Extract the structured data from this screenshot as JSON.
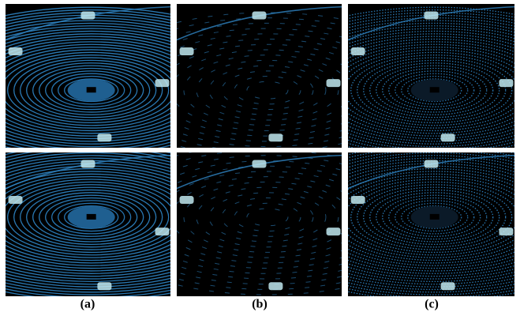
{
  "labels": [
    "(a)",
    "(b)",
    "(c)"
  ]
}
